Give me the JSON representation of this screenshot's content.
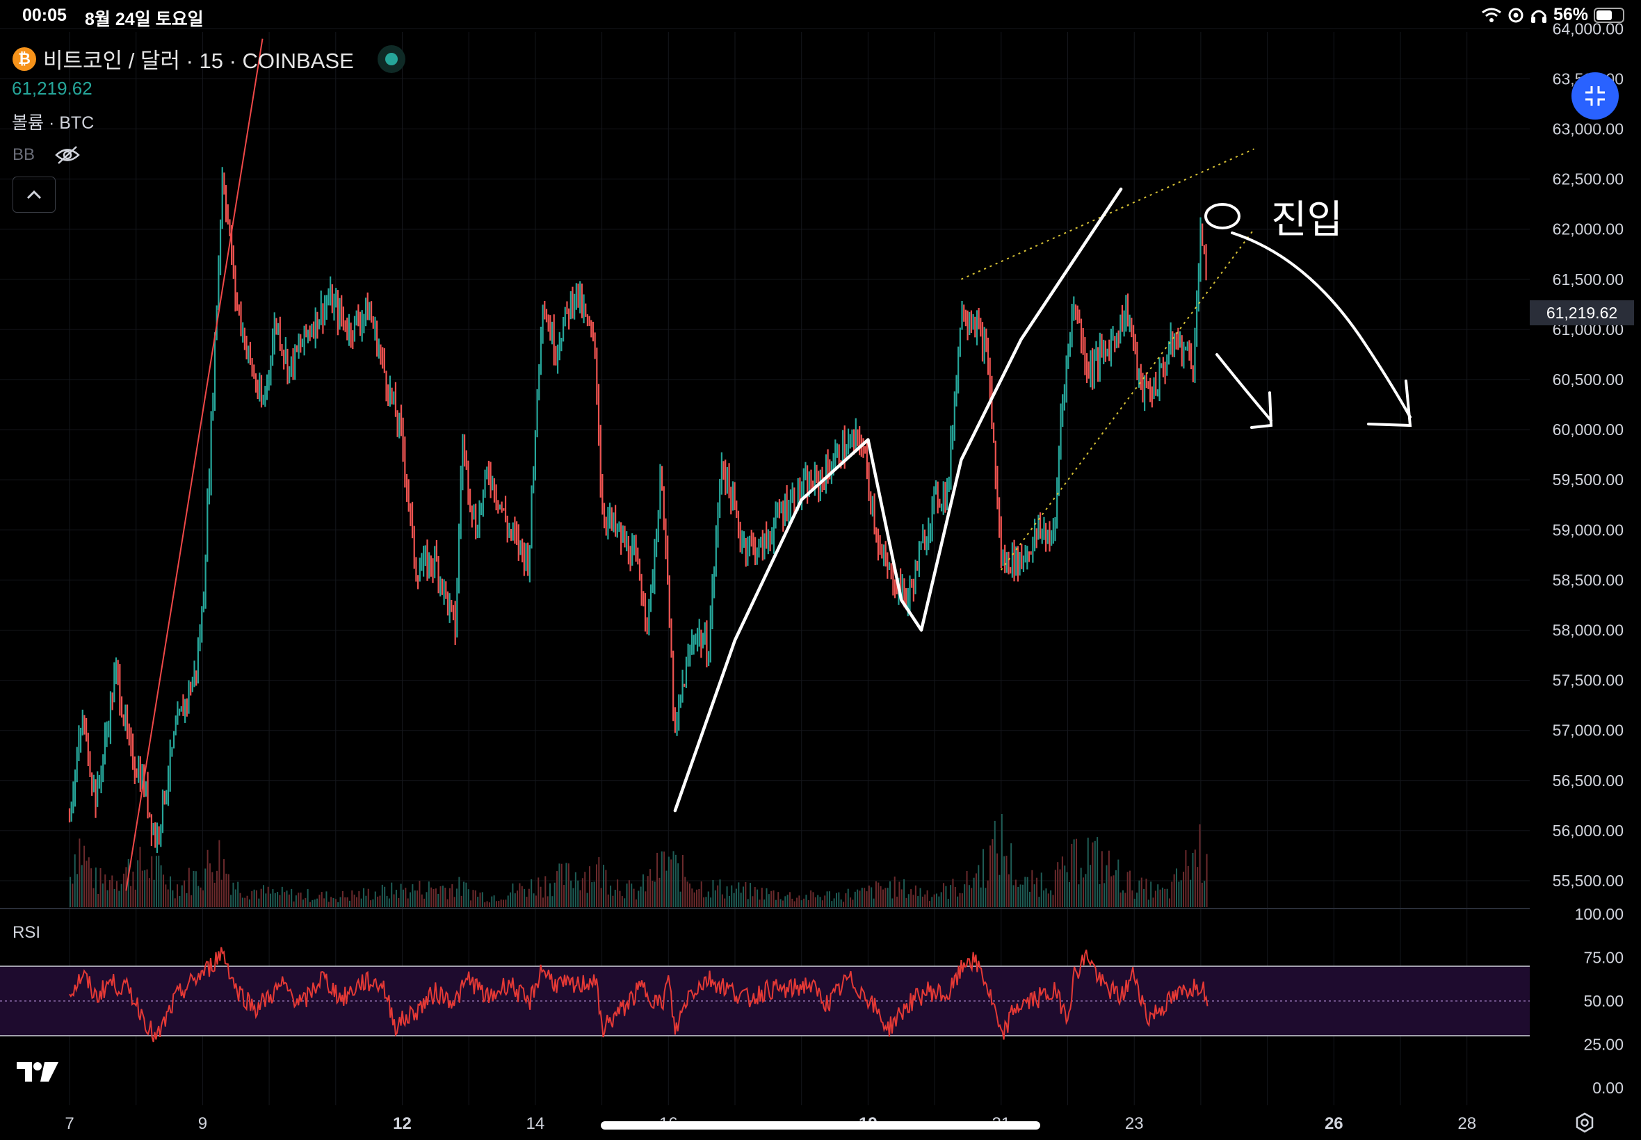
{
  "status_bar": {
    "time": "00:05",
    "date": "8월 24일 토요일",
    "battery": "56%"
  },
  "header": {
    "coin_badge": "₿",
    "symbol_title": "비트코인 / 달러 · 15 · COINBASE",
    "last_price": "61,219.62",
    "volume_label": "볼륨 · BTC",
    "indicator_label": "BB"
  },
  "rsi_panel": {
    "label": "RSI",
    "ticks": [
      "100.00",
      "75.00",
      "50.00",
      "25.00",
      "0.00"
    ],
    "upper_band": 70,
    "lower_band": 30
  },
  "price_tag": "61,219.62",
  "annotation_text": "○ 진입",
  "colors": {
    "up": "#26a69a",
    "down": "#ef5350",
    "rsi_line": "#e53935",
    "rsi_band": "#1e0b2e",
    "trendline": "#f04848",
    "wedge": "#d8c236",
    "accent": "#2962ff"
  },
  "icons": [
    "wifi-icon",
    "cast-icon",
    "headphones-icon",
    "battery-icon",
    "btc-icon",
    "live-dot-icon",
    "eye-slash-icon",
    "chevron-up-icon",
    "collapse-icon",
    "tradingview-logo-icon",
    "settings-icon"
  ],
  "chart_data": {
    "type": "line",
    "title": "비트코인 / 달러 · 15 · COINBASE",
    "y_ticks": [
      "64,000.00",
      "63,500.00",
      "63,000.00",
      "62,500.00",
      "62,000.00",
      "61,500.00",
      "61,000.00",
      "60,500.00",
      "60,000.00",
      "59,500.00",
      "59,000.00",
      "58,500.00",
      "58,000.00",
      "57,500.00",
      "57,000.00",
      "56,500.00",
      "56,000.00",
      "55,500.00"
    ],
    "x_ticks": [
      {
        "label": "7",
        "day": 7,
        "bold": false
      },
      {
        "label": "9",
        "day": 9,
        "bold": false
      },
      {
        "label": "12",
        "day": 12,
        "bold": true
      },
      {
        "label": "14",
        "day": 14,
        "bold": false
      },
      {
        "label": "16",
        "day": 16,
        "bold": false
      },
      {
        "label": "19",
        "day": 19,
        "bold": true
      },
      {
        "label": "21",
        "day": 21,
        "bold": false
      },
      {
        "label": "23",
        "day": 23,
        "bold": false
      },
      {
        "label": "26",
        "day": 26,
        "bold": true
      },
      {
        "label": "28",
        "day": 28,
        "bold": false
      }
    ],
    "ylim": [
      55300,
      64050
    ],
    "price_path": [
      [
        7.0,
        56200
      ],
      [
        7.2,
        57100
      ],
      [
        7.4,
        56300
      ],
      [
        7.7,
        57600
      ],
      [
        7.9,
        56800
      ],
      [
        8.1,
        56500
      ],
      [
        8.3,
        55900
      ],
      [
        8.6,
        57000
      ],
      [
        8.9,
        57600
      ],
      [
        9.0,
        58200
      ],
      [
        9.1,
        59600
      ],
      [
        9.3,
        62600
      ],
      [
        9.5,
        61300
      ],
      [
        9.7,
        60700
      ],
      [
        9.9,
        60200
      ],
      [
        10.1,
        61100
      ],
      [
        10.3,
        60600
      ],
      [
        10.6,
        61000
      ],
      [
        10.9,
        61300
      ],
      [
        11.2,
        61000
      ],
      [
        11.5,
        61200
      ],
      [
        11.8,
        60400
      ],
      [
        12.0,
        59900
      ],
      [
        12.2,
        58600
      ],
      [
        12.5,
        58700
      ],
      [
        12.8,
        58000
      ],
      [
        12.9,
        59900
      ],
      [
        13.1,
        59000
      ],
      [
        13.3,
        59600
      ],
      [
        13.6,
        59000
      ],
      [
        13.9,
        58700
      ],
      [
        14.1,
        61300
      ],
      [
        14.3,
        60800
      ],
      [
        14.6,
        61400
      ],
      [
        14.9,
        60800
      ],
      [
        15.0,
        59200
      ],
      [
        15.2,
        59000
      ],
      [
        15.5,
        58700
      ],
      [
        15.7,
        58100
      ],
      [
        15.9,
        59600
      ],
      [
        16.1,
        56900
      ],
      [
        16.2,
        57400
      ],
      [
        16.4,
        58000
      ],
      [
        16.6,
        57800
      ],
      [
        16.8,
        59700
      ],
      [
        17.1,
        58900
      ],
      [
        17.4,
        58800
      ],
      [
        17.7,
        59200
      ],
      [
        18.0,
        59400
      ],
      [
        18.3,
        59500
      ],
      [
        18.6,
        59800
      ],
      [
        18.9,
        59900
      ],
      [
        19.2,
        58700
      ],
      [
        19.6,
        58300
      ],
      [
        19.8,
        58800
      ],
      [
        20.0,
        59300
      ],
      [
        20.2,
        59400
      ],
      [
        20.4,
        61200
      ],
      [
        20.6,
        61100
      ],
      [
        20.8,
        60700
      ],
      [
        21.0,
        58700
      ],
      [
        21.3,
        58700
      ],
      [
        21.6,
        59000
      ],
      [
        21.8,
        58900
      ],
      [
        21.9,
        60200
      ],
      [
        22.1,
        61300
      ],
      [
        22.3,
        60600
      ],
      [
        22.6,
        60800
      ],
      [
        22.9,
        61200
      ],
      [
        23.1,
        60400
      ],
      [
        23.3,
        60400
      ],
      [
        23.6,
        60900
      ],
      [
        23.9,
        60700
      ],
      [
        24.0,
        62100
      ],
      [
        24.1,
        61220
      ]
    ],
    "rsi_path": [
      [
        7.0,
        54
      ],
      [
        7.2,
        65
      ],
      [
        7.4,
        52
      ],
      [
        7.6,
        61
      ],
      [
        7.9,
        56
      ],
      [
        8.1,
        42
      ],
      [
        8.3,
        27
      ],
      [
        8.6,
        52
      ],
      [
        8.9,
        63
      ],
      [
        9.1,
        69
      ],
      [
        9.3,
        79
      ],
      [
        9.5,
        57
      ],
      [
        9.8,
        46
      ],
      [
        10.2,
        59
      ],
      [
        10.5,
        48
      ],
      [
        10.8,
        64
      ],
      [
        11.1,
        51
      ],
      [
        11.4,
        61
      ],
      [
        11.7,
        60
      ],
      [
        11.9,
        36
      ],
      [
        12.2,
        44
      ],
      [
        12.5,
        55
      ],
      [
        12.8,
        50
      ],
      [
        13.0,
        63
      ],
      [
        13.3,
        51
      ],
      [
        13.6,
        61
      ],
      [
        13.9,
        48
      ],
      [
        14.1,
        69
      ],
      [
        14.3,
        60
      ],
      [
        14.6,
        58
      ],
      [
        14.9,
        63
      ],
      [
        15.0,
        34
      ],
      [
        15.3,
        45
      ],
      [
        15.6,
        58
      ],
      [
        15.9,
        47
      ],
      [
        16.0,
        63
      ],
      [
        16.1,
        32
      ],
      [
        16.3,
        54
      ],
      [
        16.6,
        63
      ],
      [
        16.9,
        57
      ],
      [
        17.2,
        51
      ],
      [
        17.5,
        57
      ],
      [
        17.8,
        56
      ],
      [
        18.1,
        60
      ],
      [
        18.4,
        48
      ],
      [
        18.7,
        63
      ],
      [
        19.0,
        52
      ],
      [
        19.3,
        34
      ],
      [
        19.6,
        48
      ],
      [
        19.9,
        56
      ],
      [
        20.2,
        53
      ],
      [
        20.5,
        75
      ],
      [
        20.7,
        68
      ],
      [
        20.9,
        45
      ],
      [
        21.0,
        28
      ],
      [
        21.2,
        46
      ],
      [
        21.5,
        51
      ],
      [
        21.8,
        55
      ],
      [
        22.0,
        42
      ],
      [
        22.1,
        65
      ],
      [
        22.3,
        77
      ],
      [
        22.5,
        60
      ],
      [
        22.8,
        52
      ],
      [
        23.0,
        66
      ],
      [
        23.2,
        40
      ],
      [
        23.5,
        49
      ],
      [
        23.8,
        57
      ],
      [
        24.0,
        60
      ],
      [
        24.1,
        53
      ]
    ],
    "volume_profile": [
      [
        7.0,
        0.45
      ],
      [
        7.1,
        1.0
      ],
      [
        7.4,
        0.35
      ],
      [
        7.9,
        0.55
      ],
      [
        8.2,
        0.6
      ],
      [
        8.6,
        0.3
      ],
      [
        9.0,
        0.5
      ],
      [
        9.2,
        0.8
      ],
      [
        9.5,
        0.3
      ],
      [
        10.0,
        0.2
      ],
      [
        11.0,
        0.15
      ],
      [
        12.0,
        0.25
      ],
      [
        12.8,
        0.3
      ],
      [
        13.3,
        0.15
      ],
      [
        14.1,
        0.35
      ],
      [
        14.9,
        0.55
      ],
      [
        15.5,
        0.2
      ],
      [
        16.0,
        0.7
      ],
      [
        16.1,
        0.55
      ],
      [
        16.5,
        0.3
      ],
      [
        17.0,
        0.25
      ],
      [
        18.0,
        0.15
      ],
      [
        18.9,
        0.2
      ],
      [
        19.3,
        0.3
      ],
      [
        20.0,
        0.2
      ],
      [
        20.5,
        0.35
      ],
      [
        21.0,
        0.95
      ],
      [
        21.3,
        0.3
      ],
      [
        22.0,
        0.5
      ],
      [
        22.2,
        0.85
      ],
      [
        23.0,
        0.3
      ],
      [
        23.5,
        0.2
      ],
      [
        24.0,
        0.9
      ],
      [
        24.1,
        0.4
      ]
    ],
    "drawings": {
      "trendline": [
        [
          7.85,
          55400
        ],
        [
          9.9,
          63900
        ]
      ],
      "wedge_upper": [
        [
          20.4,
          61500
        ],
        [
          24.8,
          62800
        ]
      ],
      "wedge_lower": [
        [
          21.0,
          58600
        ],
        [
          24.8,
          62000
        ]
      ],
      "wave_path": [
        [
          16.1,
          56200
        ],
        [
          17.0,
          57900
        ],
        [
          18.0,
          59300
        ],
        [
          19.0,
          59900
        ],
        [
          19.5,
          58300
        ],
        [
          19.8,
          58000
        ],
        [
          20.4,
          59700
        ],
        [
          21.3,
          60900
        ],
        [
          22.3,
          61900
        ],
        [
          22.8,
          62400
        ]
      ]
    }
  }
}
